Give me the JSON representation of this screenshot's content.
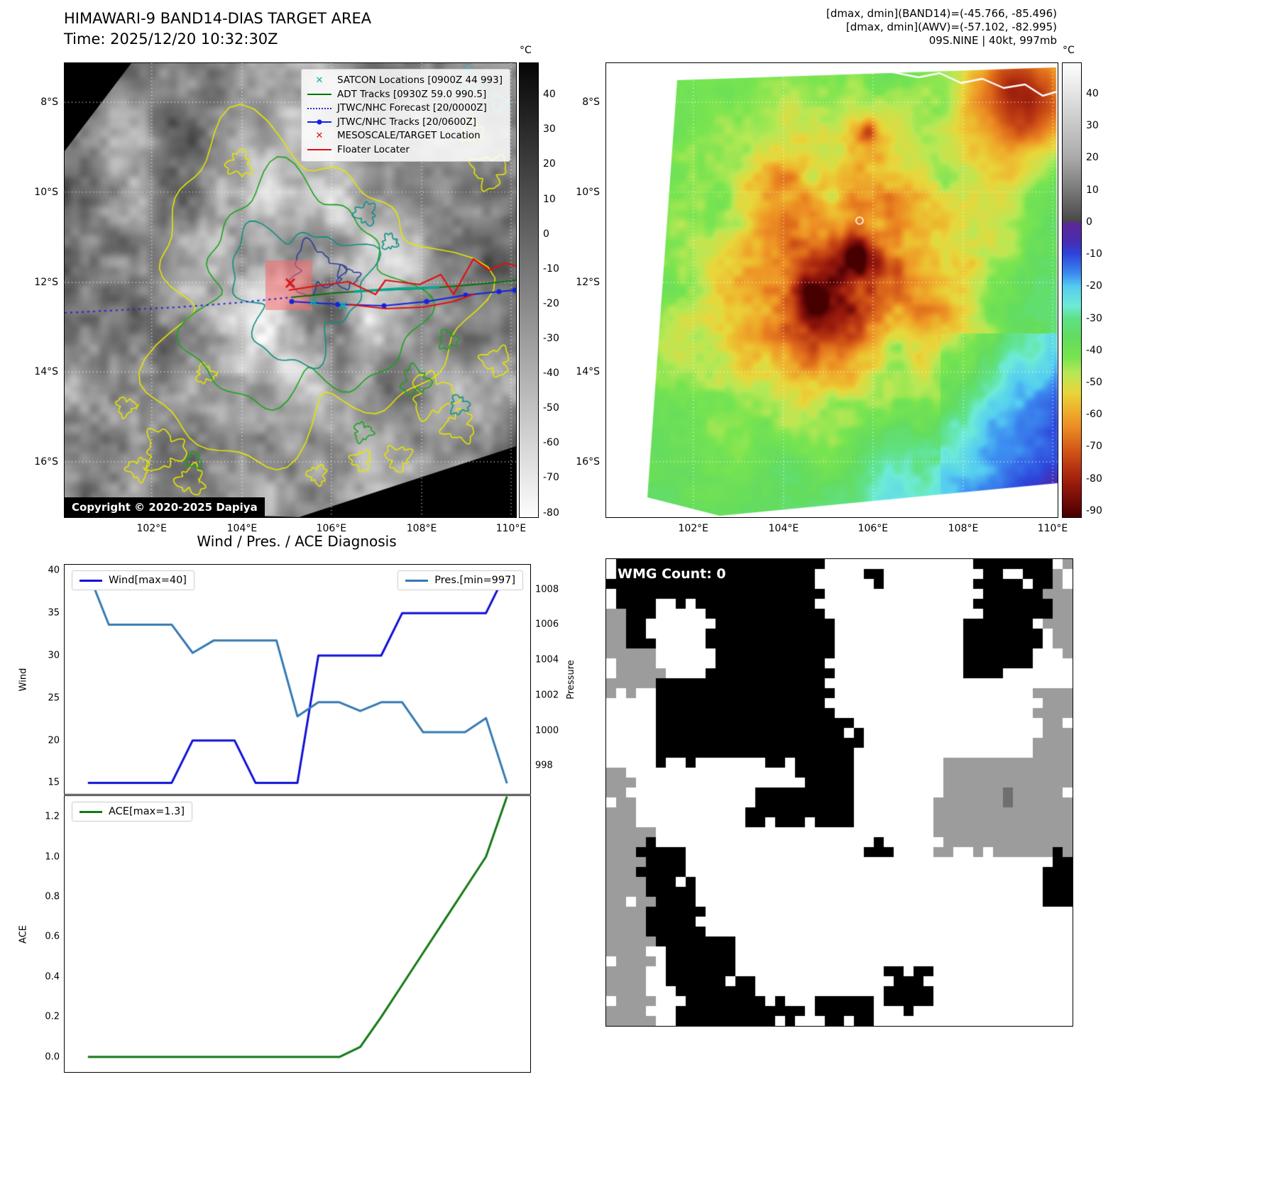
{
  "band14_panel": {
    "title": "HIMAWARI-9 BAND14-DIAS TARGET AREA",
    "time_label": "Time: 2025/12/20 10:32:30Z",
    "copyright": "Copyright © 2020-2025 Dapiya",
    "colorbar_unit": "°C",
    "colorbar_ticks": [
      40,
      30,
      20,
      10,
      0,
      -10,
      -20,
      -30,
      -40,
      -50,
      -60,
      -70,
      -80
    ],
    "lat_ticks": [
      "8°S",
      "10°S",
      "12°S",
      "14°S",
      "16°S"
    ],
    "lon_ticks": [
      "102°E",
      "104°E",
      "106°E",
      "108°E",
      "110°E"
    ],
    "legend_items": [
      {
        "label": "SATCON Locations [0900Z 44 993]",
        "marker": "x",
        "color": "#00b2a8"
      },
      {
        "label": "ADT Tracks [0930Z 59.0 990.5]",
        "marker": "line",
        "color": "#067306"
      },
      {
        "label": "JTWC/NHC Forecast [20/0000Z]",
        "marker": "dotted",
        "color": "#2a2ad0"
      },
      {
        "label": "JTWC/NHC Tracks [20/0600Z]",
        "marker": "line-dot",
        "color": "#1222e0"
      },
      {
        "label": "MESOSCALE/TARGET Location",
        "marker": "x",
        "color": "#e01010"
      },
      {
        "label": "Floater Locater",
        "marker": "line",
        "color": "#e01010"
      }
    ]
  },
  "awv_panel": {
    "header_lines": [
      "[dmax, dmin](BAND14)=(-45.766, -85.496)",
      "[dmax, dmin](AWV)=(-57.102, -82.995)",
      "09S.NINE | 40kt, 997mb"
    ],
    "colorbar_unit": "°C",
    "colorbar_ticks": [
      40,
      30,
      20,
      10,
      0,
      -10,
      -20,
      -30,
      -40,
      -50,
      -60,
      -70,
      -80,
      -90
    ],
    "lat_ticks": [
      "8°S",
      "10°S",
      "12°S",
      "14°S",
      "16°S"
    ],
    "lon_ticks": [
      "102°E",
      "104°E",
      "106°E",
      "108°E",
      "110°E"
    ]
  },
  "wmg_panel": {
    "count_label": "WMG Count: 0"
  },
  "chart_data": [
    {
      "type": "line",
      "title": "Wind / Pres. / ACE Diagnosis",
      "ylabel": "Wind",
      "y2label": "Pressure",
      "yticks": [
        15,
        20,
        25,
        30,
        35,
        40
      ],
      "ylim": [
        13.7,
        40.7
      ],
      "y2ticks": [
        998,
        1000,
        1002,
        1004,
        1006,
        1008
      ],
      "y2lim": [
        996.4,
        1009.4
      ],
      "legend_position": "upper left / upper right",
      "x": [
        0,
        1,
        2,
        3,
        4,
        5,
        6,
        7,
        8,
        9,
        10,
        11,
        12,
        13,
        14,
        15,
        16,
        17,
        18,
        19,
        20
      ],
      "series": [
        {
          "name": "Wind[max=40]",
          "axis": "left",
          "color": "#0f0fd7",
          "values": [
            15,
            15,
            15,
            15,
            15,
            20,
            20,
            20,
            15,
            15,
            15,
            30,
            30,
            30,
            30,
            35,
            35,
            35,
            35,
            35,
            40
          ]
        },
        {
          "name": "Pres.[min=997]",
          "axis": "right",
          "color": "#3579b1",
          "values": [
            1009,
            1006,
            1006,
            1006,
            1006,
            1004.4,
            1005.1,
            1005.1,
            1005.1,
            1005.1,
            1000.8,
            1001.6,
            1001.6,
            1001.1,
            1001.6,
            1001.6,
            999.9,
            999.9,
            999.9,
            1000.7,
            997
          ]
        }
      ]
    },
    {
      "type": "line",
      "ylabel": "ACE",
      "yticks": [
        "0.0",
        "0.2",
        "0.4",
        "0.6",
        "0.8",
        "1.0",
        "1.2"
      ],
      "ylim": [
        -0.075,
        1.303
      ],
      "legend_position": "upper left",
      "x": [
        0,
        1,
        2,
        3,
        4,
        5,
        6,
        7,
        8,
        9,
        10,
        11,
        12,
        13,
        14,
        15,
        16,
        17,
        18,
        19,
        20
      ],
      "series": [
        {
          "name": "ACE[max=1.3]",
          "axis": "left",
          "color": "#137813",
          "values": [
            0,
            0,
            0,
            0,
            0,
            0,
            0,
            0,
            0,
            0,
            0,
            0,
            0,
            0.05,
            0.2,
            0.36,
            0.52,
            0.68,
            0.84,
            1.0,
            1.3
          ]
        }
      ]
    }
  ]
}
